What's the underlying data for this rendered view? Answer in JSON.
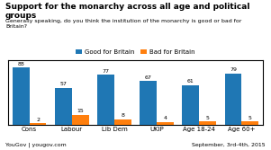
{
  "chart_data": {
    "type": "bar",
    "title": "Support for the monarchy across all age and political groups",
    "subtitle": "Generally speaking, do you think the institution of the monarchy is good or bad for\nBritain?",
    "categories": [
      "Cons",
      "Labour",
      "Lib Dem",
      "UKIP",
      "Age 18-24",
      "Age 60+"
    ],
    "series": [
      {
        "name": "Good for Britain",
        "values": [
          88,
          57,
          77,
          67,
          61,
          79
        ]
      },
      {
        "name": "Bad for Britain",
        "values": [
          2,
          15,
          8,
          4,
          5,
          5
        ]
      }
    ],
    "ylim": [
      0,
      100
    ],
    "data_labels": true,
    "tick_labels": "x",
    "legend": "upper center",
    "grid": false,
    "annotations": [
      "YouGov | yougov.com",
      "September, 3rd-4th, 2015"
    ]
  }
}
